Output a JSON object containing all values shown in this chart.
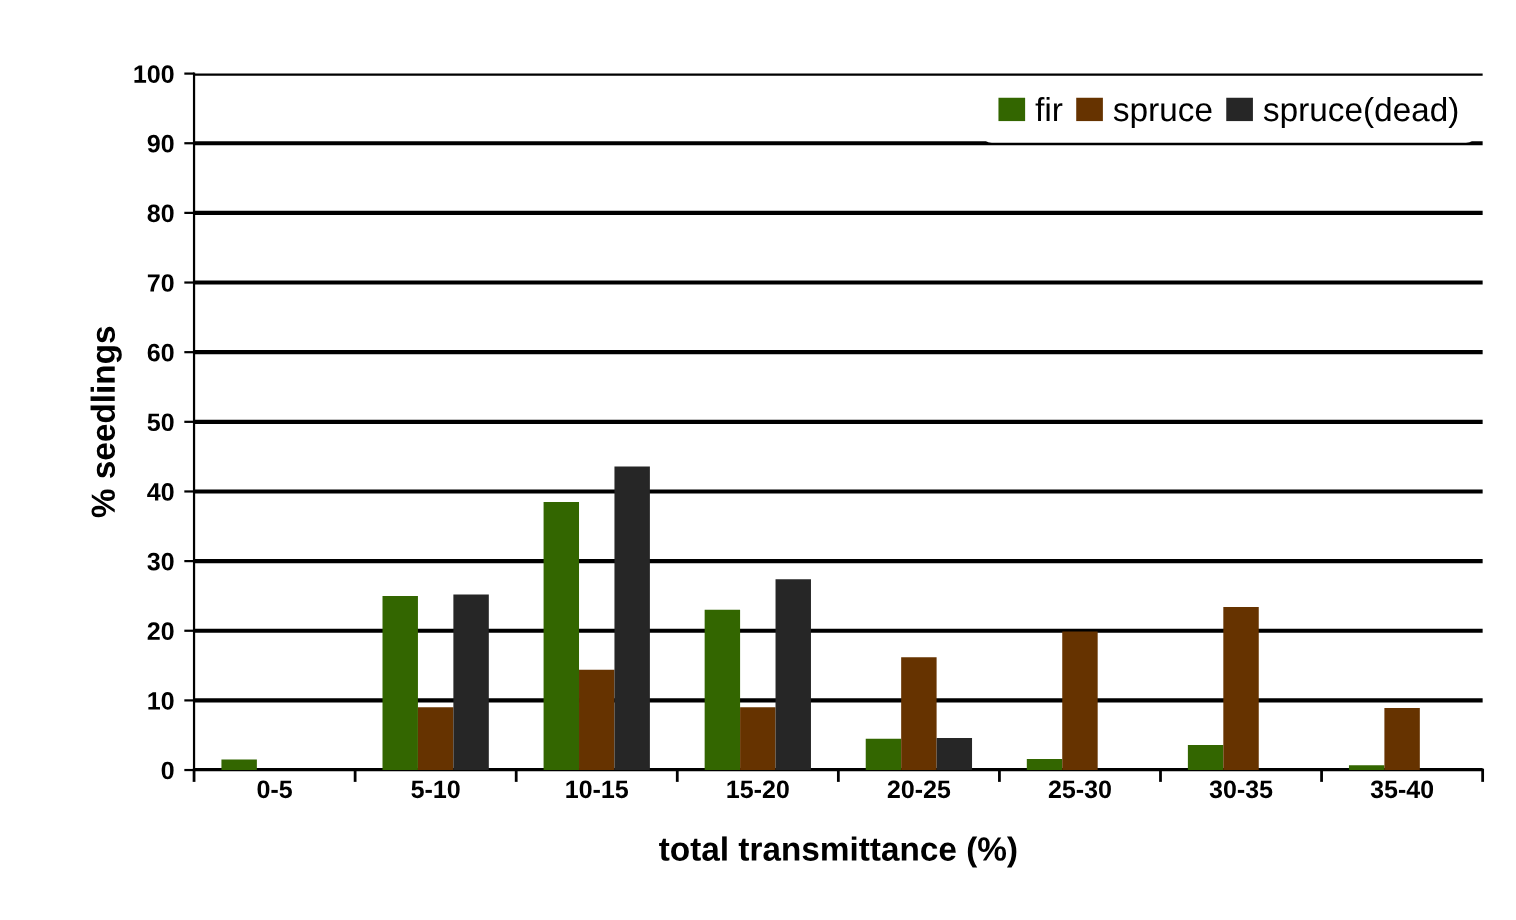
{
  "chart_data": {
    "type": "bar",
    "xlabel": "total transmittance (%)",
    "ylabel": "% seedlings",
    "categories": [
      "0-5",
      "5-10",
      "10-15",
      "15-20",
      "20-25",
      "25-30",
      "30-35",
      "35-40"
    ],
    "series": [
      {
        "name": "fir",
        "color": "#336600",
        "values": [
          1.5,
          25,
          38.5,
          23,
          4.5,
          1.6,
          3.6,
          0.7
        ]
      },
      {
        "name": "spruce",
        "color": "#663300",
        "values": [
          0,
          9,
          14.4,
          9,
          16.2,
          19.9,
          23.4,
          8.9
        ]
      },
      {
        "name": "spruce(dead)",
        "color": "#262626",
        "values": [
          0,
          25.2,
          43.6,
          27.4,
          4.6,
          0,
          0,
          0
        ]
      }
    ],
    "ylim": [
      0,
      100
    ],
    "yticks": [
      0,
      10,
      20,
      30,
      40,
      50,
      60,
      70,
      80,
      90,
      100
    ],
    "grid": "y",
    "legend": "top right"
  }
}
